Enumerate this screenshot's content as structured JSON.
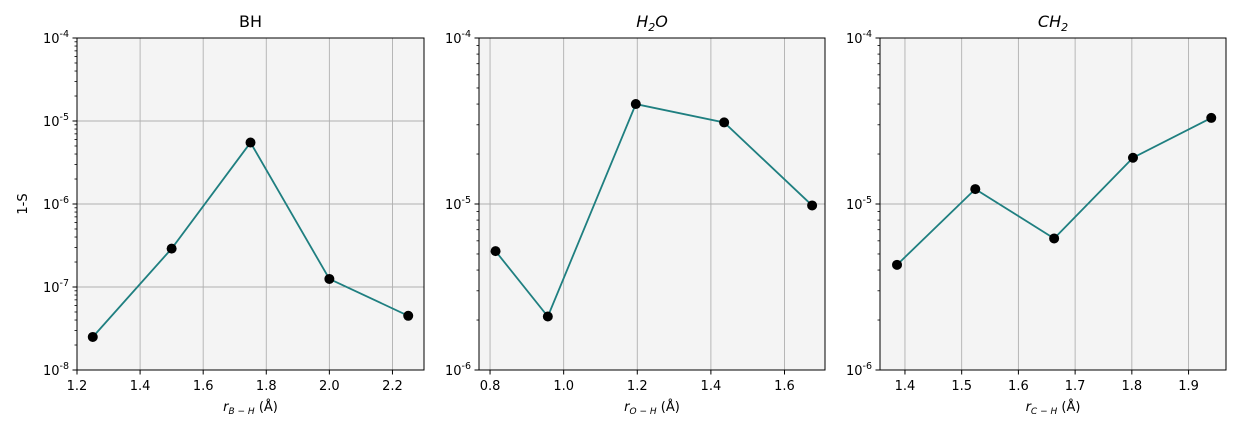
{
  "chart_data": [
    {
      "type": "line",
      "title": "BH",
      "xlabel": "r_{B-H} (Å)",
      "xlabel_parts": {
        "main": "r",
        "sub": "B − H",
        "tail": " (Å)"
      },
      "ylabel": "1-S",
      "yscale": "log",
      "xlim": [
        1.2,
        2.3
      ],
      "ylim": [
        1e-08,
        0.0001
      ],
      "x_ticks": [
        1.2,
        1.4,
        1.6,
        1.8,
        2.0,
        2.2
      ],
      "x_tick_labels": [
        "1.2",
        "1.4",
        "1.6",
        "1.8",
        "2.0",
        "2.2"
      ],
      "y_ticks": [
        -8,
        -7,
        -6,
        -5,
        -4
      ],
      "grid": true,
      "line_color": "#1f7f80",
      "marker_color": "#000000",
      "background_color": "#f4f4f4",
      "x": [
        1.25,
        1.5,
        1.75,
        2.0,
        2.25
      ],
      "y": [
        2.5e-08,
        2.9e-07,
        5.5e-06,
        1.25e-07,
        4.5e-08
      ]
    },
    {
      "type": "line",
      "title": "H2O",
      "title_parts": {
        "a": "H",
        "sub": "2",
        "b": "O"
      },
      "xlabel": "r_{O-H} (Å)",
      "xlabel_parts": {
        "main": "r",
        "sub": "O − H",
        "tail": " (Å)"
      },
      "ylabel": "",
      "yscale": "log",
      "xlim": [
        0.77,
        1.71
      ],
      "ylim": [
        1e-06,
        0.0001
      ],
      "x_ticks": [
        0.8,
        1.0,
        1.2,
        1.4,
        1.6
      ],
      "x_tick_labels": [
        "0.8",
        "1.0",
        "1.2",
        "1.4",
        "1.6"
      ],
      "y_ticks": [
        -6,
        -5,
        -4
      ],
      "grid": true,
      "line_color": "#1f7f80",
      "marker_color": "#000000",
      "background_color": "#f4f4f4",
      "x": [
        0.815,
        0.957,
        1.196,
        1.436,
        1.675
      ],
      "y": [
        5.2e-06,
        2.1e-06,
        4e-05,
        3.1e-05,
        9.8e-06
      ]
    },
    {
      "type": "line",
      "title": "CH2",
      "title_parts": {
        "a": "CH",
        "sub": "2",
        "b": ""
      },
      "xlabel": "r_{C-H} (Å)",
      "xlabel_parts": {
        "main": "r",
        "sub": "C − H",
        "tail": " (Å)"
      },
      "ylabel": "",
      "yscale": "log",
      "xlim": [
        1.356,
        1.966
      ],
      "ylim": [
        1e-06,
        0.0001
      ],
      "x_ticks": [
        1.4,
        1.5,
        1.6,
        1.7,
        1.8,
        1.9
      ],
      "x_tick_labels": [
        "1.4",
        "1.5",
        "1.6",
        "1.7",
        "1.8",
        "1.9"
      ],
      "y_ticks": [
        -6,
        -5,
        -4
      ],
      "grid": true,
      "line_color": "#1f7f80",
      "marker_color": "#000000",
      "background_color": "#f4f4f4",
      "x": [
        1.386,
        1.524,
        1.663,
        1.802,
        1.94
      ],
      "y": [
        4.3e-06,
        1.23e-05,
        6.2e-06,
        1.9e-05,
        3.3e-05
      ]
    }
  ]
}
